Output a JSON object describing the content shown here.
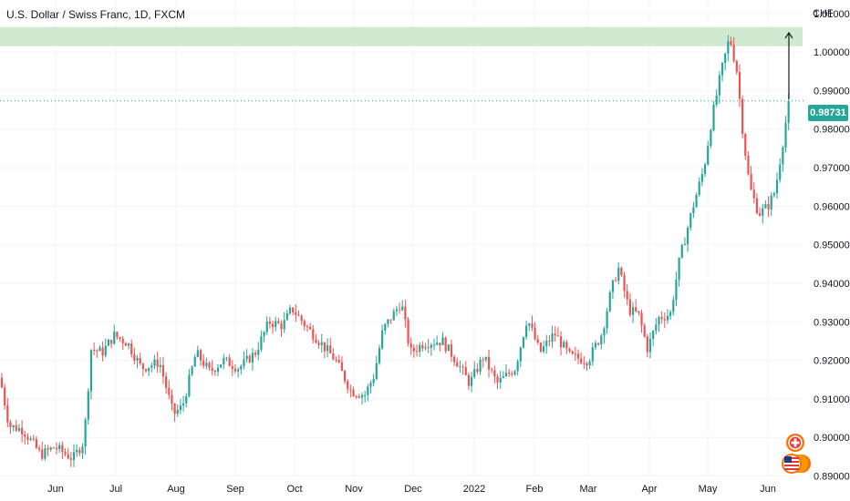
{
  "header": {
    "title": "U.S. Dollar / Swiss Franc, 1D, FXCM",
    "currency": "CHF"
  },
  "colors": {
    "up": "#26a69a",
    "down": "#ef5350",
    "zone": "#c8e6c9",
    "grid": "#f0f3fa",
    "text": "#131722"
  },
  "last_price": "0.98731",
  "icons": [
    "swiss-flag-icon",
    "us-flag-icon"
  ],
  "chart_data": {
    "type": "candlestick",
    "title": "U.S. Dollar / Swiss Franc, 1D, FXCM",
    "ylabel": "CHF",
    "ylim": [
      0.8835,
      1.0135
    ],
    "y_ticks": [
      "1.01000",
      "1.00000",
      "0.99000",
      "0.98000",
      "0.97000",
      "0.96000",
      "0.95000",
      "0.94000",
      "0.93000",
      "0.92000",
      "0.91000",
      "0.90000",
      "0.89000"
    ],
    "x_ticks": [
      "Jun",
      "Jul",
      "Aug",
      "Sep",
      "Oct",
      "Nov",
      "Dec",
      "2022",
      "Feb",
      "Mar",
      "Apr",
      "May",
      "Jun"
    ],
    "grid": true,
    "last_value": 0.98731,
    "resistance_zone": [
      1.0015,
      1.0065
    ],
    "annotation": "upward arrow from last price to resistance zone",
    "price_path": [
      [
        0,
        0.9155
      ],
      [
        10,
        0.903
      ],
      [
        25,
        0.902
      ],
      [
        45,
        0.8955
      ],
      [
        60,
        0.8975
      ],
      [
        80,
        0.8945
      ],
      [
        92,
        0.899
      ],
      [
        100,
        0.923
      ],
      [
        112,
        0.922
      ],
      [
        125,
        0.9265
      ],
      [
        140,
        0.9245
      ],
      [
        155,
        0.918
      ],
      [
        175,
        0.9195
      ],
      [
        190,
        0.906
      ],
      [
        200,
        0.908
      ],
      [
        215,
        0.922
      ],
      [
        230,
        0.917
      ],
      [
        245,
        0.92
      ],
      [
        262,
        0.918
      ],
      [
        280,
        0.922
      ],
      [
        295,
        0.93
      ],
      [
        310,
        0.929
      ],
      [
        320,
        0.9335
      ],
      [
        335,
        0.929
      ],
      [
        350,
        0.925
      ],
      [
        368,
        0.92
      ],
      [
        385,
        0.912
      ],
      [
        400,
        0.911
      ],
      [
        410,
        0.916
      ],
      [
        420,
        0.928
      ],
      [
        440,
        0.935
      ],
      [
        450,
        0.922
      ],
      [
        465,
        0.9245
      ],
      [
        485,
        0.925
      ],
      [
        500,
        0.92
      ],
      [
        515,
        0.914
      ],
      [
        530,
        0.921
      ],
      [
        545,
        0.914
      ],
      [
        565,
        0.918
      ],
      [
        578,
        0.931
      ],
      [
        592,
        0.922
      ],
      [
        608,
        0.927
      ],
      [
        625,
        0.921
      ],
      [
        645,
        0.92
      ],
      [
        660,
        0.927
      ],
      [
        670,
        0.938
      ],
      [
        678,
        0.944
      ],
      [
        690,
        0.933
      ],
      [
        700,
        0.932
      ],
      [
        710,
        0.923
      ],
      [
        722,
        0.931
      ],
      [
        735,
        0.932
      ],
      [
        745,
        0.946
      ],
      [
        760,
        0.96
      ],
      [
        772,
        0.97
      ],
      [
        780,
        0.982
      ],
      [
        790,
        0.994
      ],
      [
        800,
        1.004
      ],
      [
        808,
        0.995
      ],
      [
        815,
        0.978
      ],
      [
        822,
        0.965
      ],
      [
        832,
        0.958
      ],
      [
        842,
        0.96
      ],
      [
        850,
        0.964
      ],
      [
        858,
        0.976
      ],
      [
        865,
        0.98731
      ]
    ]
  }
}
